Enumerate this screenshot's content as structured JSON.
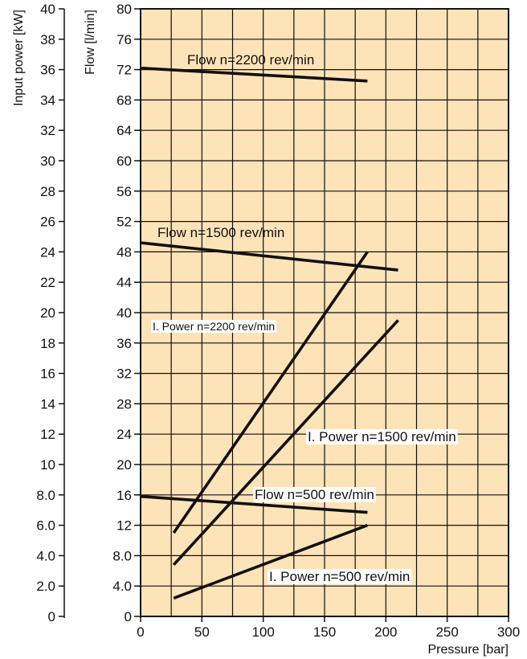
{
  "chart_data": {
    "type": "line",
    "xlabel": "Pressure [bar]",
    "ylabel": "Flow [l/min]",
    "y2label": "Input power [kW]",
    "xlim": [
      0,
      300
    ],
    "ylim": [
      0,
      80
    ],
    "y2lim": [
      0,
      40
    ],
    "grid": true,
    "background": "#fde3b8",
    "x_ticks": [
      "0",
      "50",
      "100",
      "150",
      "200",
      "250",
      "300"
    ],
    "y_ticks": [
      "0",
      "4.0",
      "8.0",
      "12",
      "16",
      "20",
      "24",
      "28",
      "32",
      "36",
      "40",
      "44",
      "48",
      "52",
      "56",
      "60",
      "64",
      "68",
      "72",
      "76",
      "80"
    ],
    "y2_ticks": [
      "0",
      "2.0",
      "4.0",
      "6.0",
      "8.0",
      "10",
      "12",
      "14",
      "16",
      "18",
      "20",
      "22",
      "24",
      "26",
      "28",
      "30",
      "32",
      "34",
      "36",
      "38",
      "40"
    ],
    "series": [
      {
        "name": "Flow n=2200 rev/min",
        "axis": "flow",
        "x": [
          0,
          185
        ],
        "y": [
          72.2,
          70.5
        ]
      },
      {
        "name": "Flow n=1500 rev/min",
        "axis": "flow",
        "x": [
          0,
          210
        ],
        "y": [
          49.2,
          45.6
        ]
      },
      {
        "name": "Flow n=500 rev/min",
        "axis": "flow",
        "x": [
          0,
          185
        ],
        "y": [
          15.8,
          13.7
        ]
      },
      {
        "name": "I. Power n=2200 rev/min",
        "axis": "power",
        "x": [
          27,
          185
        ],
        "y": [
          5.5,
          24.0
        ]
      },
      {
        "name": "I. Power n=1500 rev/min",
        "axis": "power",
        "x": [
          27,
          210
        ],
        "y": [
          3.4,
          19.5
        ]
      },
      {
        "name": "I. Power n=500 rev/min",
        "axis": "power",
        "x": [
          27,
          185
        ],
        "y": [
          1.2,
          6.0
        ]
      }
    ],
    "labels": [
      {
        "text": "Flow n=2200 rev/min",
        "series": 0
      },
      {
        "text": "Flow n=1500 rev/min",
        "series": 1
      },
      {
        "text": "Flow n=500 rev/min",
        "series": 2
      },
      {
        "text": "I. Power n=2200 rev/min",
        "series": 3
      },
      {
        "text": "I. Power n=1500 rev/min",
        "series": 4
      },
      {
        "text": "I. Power n=500 rev/min",
        "series": 5
      }
    ]
  }
}
